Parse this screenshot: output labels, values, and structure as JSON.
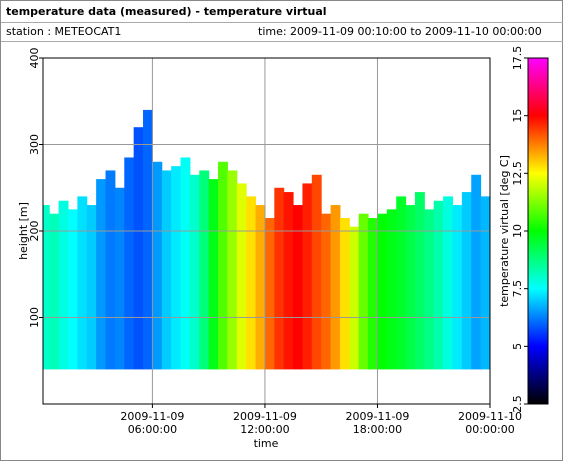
{
  "header": {
    "title": "temperature data (measured) - temperature virtual",
    "station": "station : METEOCAT1",
    "time_range": "time: 2009-11-09 00:10:00 to 2009-11-10 00:00:00"
  },
  "chart_data": {
    "type": "column-heatmap",
    "ylabel": "height [m]",
    "xlabel": "time",
    "x": [
      "2009-11-09 00:30:00",
      "2009-11-09 01:00:00",
      "2009-11-09 01:30:00",
      "2009-11-09 02:00:00",
      "2009-11-09 02:30:00",
      "2009-11-09 03:00:00",
      "2009-11-09 03:30:00",
      "2009-11-09 04:00:00",
      "2009-11-09 04:30:00",
      "2009-11-09 05:00:00",
      "2009-11-09 05:30:00",
      "2009-11-09 06:00:00",
      "2009-11-09 06:30:00",
      "2009-11-09 07:00:00",
      "2009-11-09 07:30:00",
      "2009-11-09 08:00:00",
      "2009-11-09 08:30:00",
      "2009-11-09 09:00:00",
      "2009-11-09 09:30:00",
      "2009-11-09 10:00:00",
      "2009-11-09 10:30:00",
      "2009-11-09 11:00:00",
      "2009-11-09 11:30:00",
      "2009-11-09 12:00:00",
      "2009-11-09 12:30:00",
      "2009-11-09 13:00:00",
      "2009-11-09 13:30:00",
      "2009-11-09 14:00:00",
      "2009-11-09 14:30:00",
      "2009-11-09 15:00:00",
      "2009-11-09 15:30:00",
      "2009-11-09 16:00:00",
      "2009-11-09 16:30:00",
      "2009-11-09 17:00:00",
      "2009-11-09 17:30:00",
      "2009-11-09 18:00:00",
      "2009-11-09 18:30:00",
      "2009-11-09 19:00:00",
      "2009-11-09 19:30:00",
      "2009-11-09 20:00:00",
      "2009-11-09 20:30:00",
      "2009-11-09 21:00:00",
      "2009-11-09 21:30:00",
      "2009-11-09 22:00:00",
      "2009-11-09 22:30:00",
      "2009-11-09 23:00:00",
      "2009-11-09 23:30:00",
      "2009-11-10 00:00:00"
    ],
    "values": [
      230,
      220,
      235,
      225,
      240,
      230,
      260,
      270,
      250,
      285,
      320,
      340,
      280,
      270,
      275,
      285,
      265,
      270,
      260,
      280,
      270,
      255,
      240,
      230,
      215,
      250,
      245,
      230,
      255,
      265,
      220,
      230,
      215,
      205,
      220,
      215,
      220,
      225,
      240,
      230,
      245,
      225,
      235,
      240,
      230,
      245,
      265,
      240
    ],
    "color_values": [
      8,
      8.2,
      7.8,
      7.5,
      7.2,
      7,
      6.5,
      6.2,
      6.3,
      6,
      5.8,
      6,
      6.5,
      7,
      7.3,
      7.6,
      8,
      8.8,
      9.8,
      10.8,
      11.5,
      12.2,
      12.8,
      13.3,
      14,
      14.5,
      14.8,
      15,
      14.7,
      14.3,
      14,
      13.5,
      12.8,
      12,
      11,
      10.3,
      10,
      9.8,
      9.6,
      9.3,
      9,
      8.7,
      8.3,
      7.8,
      7.3,
      7,
      6.6,
      6.8
    ],
    "base": 40,
    "xlim": [
      "2009-11-09 00:10:00",
      "2009-11-10 00:00:00"
    ],
    "xticks": [
      "2009-11-09 06:00:00",
      "2009-11-09 12:00:00",
      "2009-11-09 18:00:00",
      "2009-11-10 00:00:00"
    ],
    "ylim": [
      0,
      400
    ],
    "yticks": [
      100,
      200,
      300,
      400
    ],
    "grid": true,
    "colorbar": {
      "label": "temperature virtual [deg C]",
      "lim": [
        2.5,
        17.5
      ],
      "ticks": [
        2.5,
        5,
        7.5,
        10,
        12.5,
        15,
        17.5
      ],
      "colormap": [
        {
          "value": 2.5,
          "color": "#000000"
        },
        {
          "value": 5,
          "color": "#0000ff"
        },
        {
          "value": 7.5,
          "color": "#00ffff"
        },
        {
          "value": 10,
          "color": "#00ff00"
        },
        {
          "value": 12.5,
          "color": "#ffff00"
        },
        {
          "value": 15,
          "color": "#ff0000"
        },
        {
          "value": 17.5,
          "color": "#ff00ff"
        }
      ]
    }
  }
}
